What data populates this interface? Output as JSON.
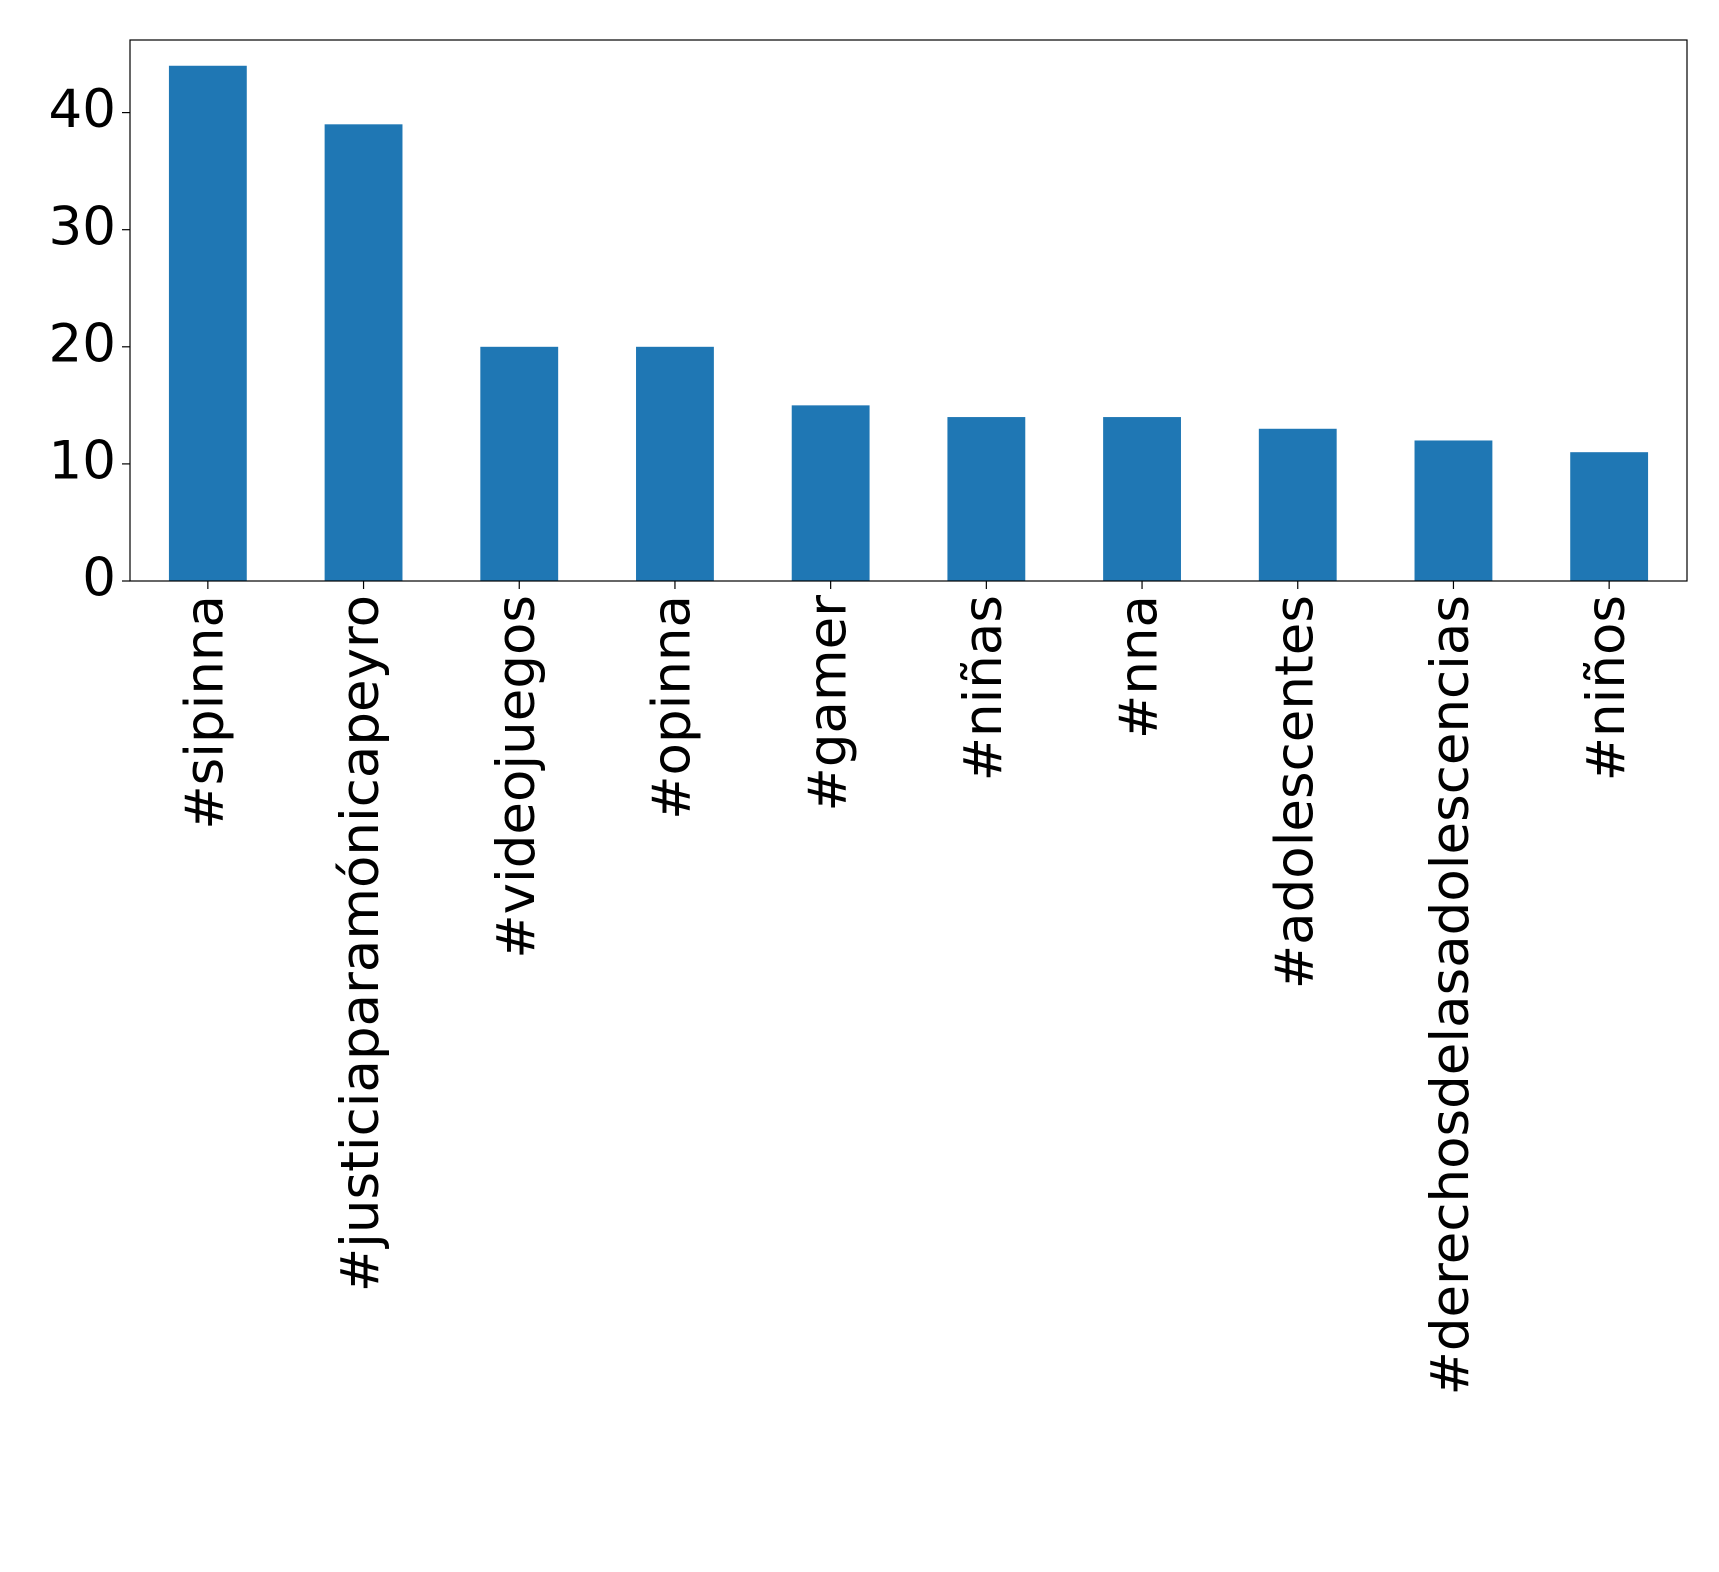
{
  "chart_data": {
    "type": "bar",
    "categories": [
      "#sipinna",
      "#justiciaparamónicapeyro",
      "#videojuegos",
      "#opinna",
      "#gamer",
      "#niñas",
      "#nna",
      "#adolescentes",
      "#derechosdelasadolescencias",
      "#niños"
    ],
    "values": [
      44,
      39,
      20,
      20,
      15,
      14,
      14,
      13,
      12,
      11
    ],
    "color": "#1f77b4",
    "ylim": [
      0,
      46.2
    ],
    "yticks": [
      0,
      10,
      20,
      30,
      40
    ],
    "grid": false
  }
}
